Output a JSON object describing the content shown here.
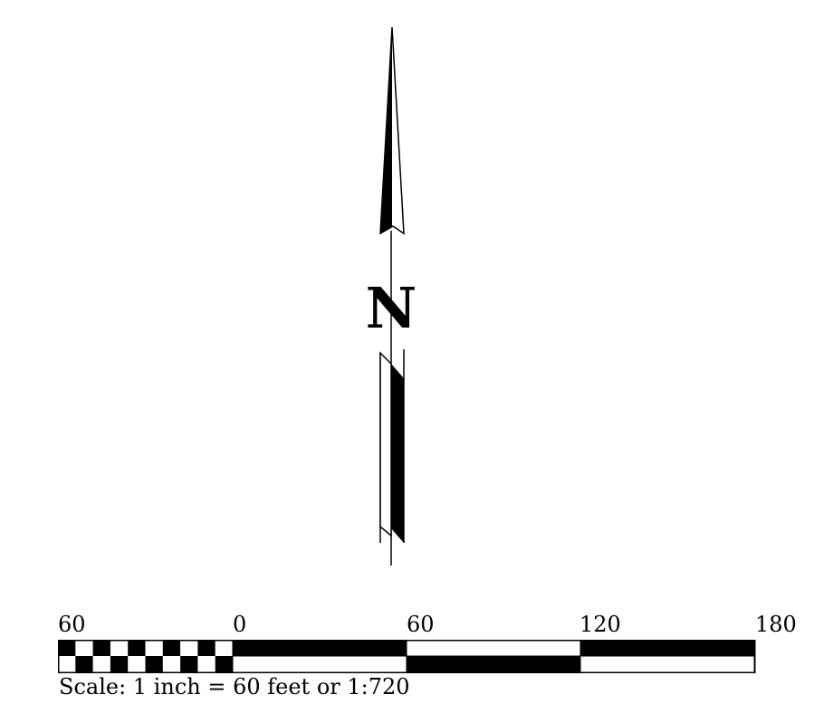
{
  "north_arrow": {
    "letter": "N"
  },
  "scale_bar": {
    "tick_labels": [
      "60",
      "0",
      "60",
      "120",
      "180"
    ],
    "scale_text": "Scale: 1 inch = 60 feet or 1:720",
    "units": "feet",
    "ratio": "1:720"
  },
  "colors": {
    "ink": "#000000",
    "paper": "#ffffff"
  }
}
